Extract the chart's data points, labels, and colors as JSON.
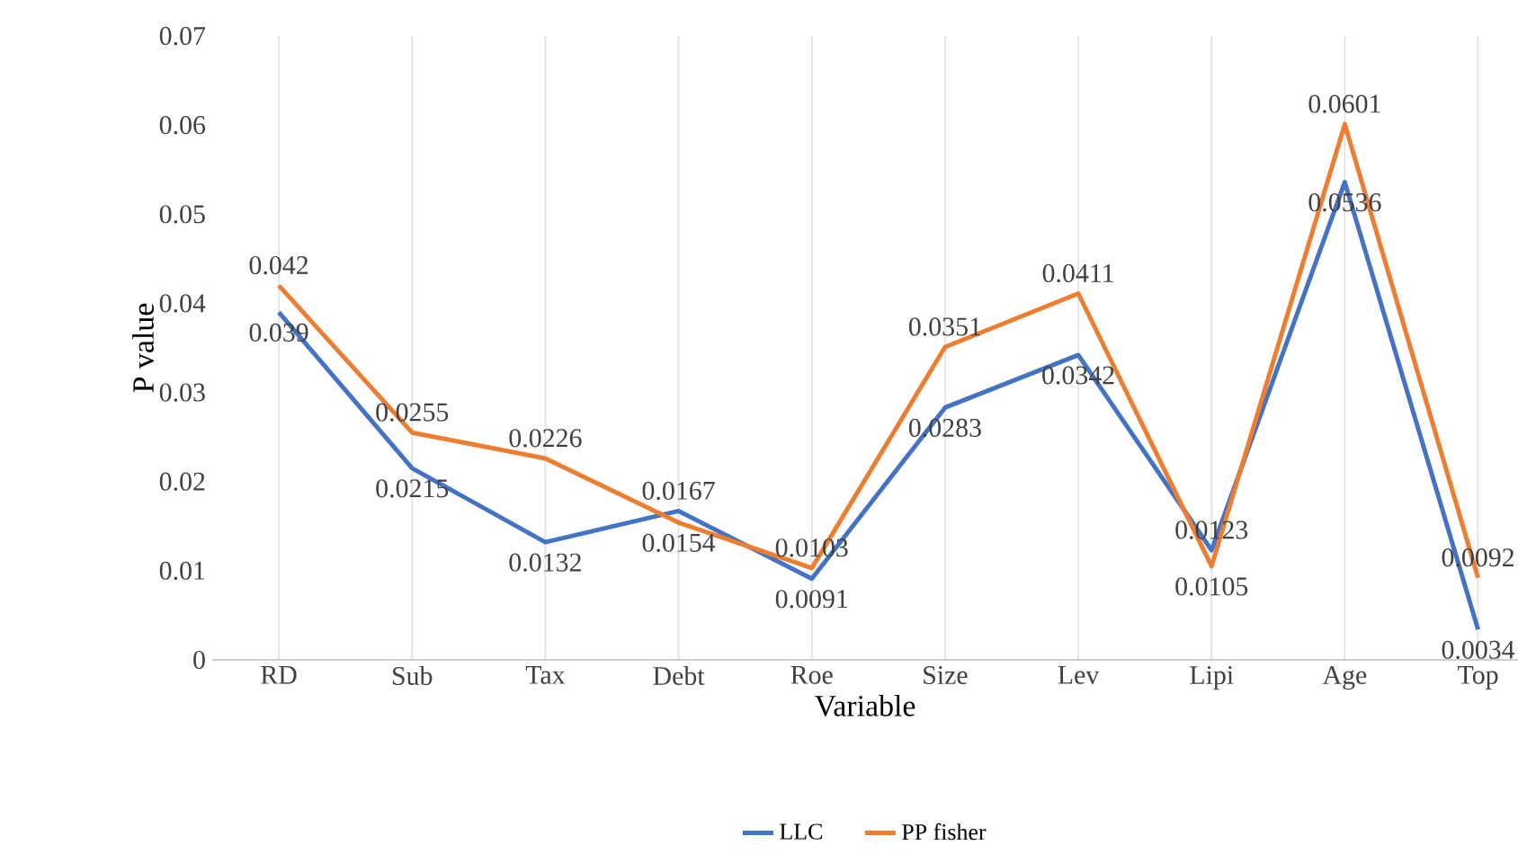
{
  "chart_data": {
    "type": "line",
    "xlabel": "Variable",
    "ylabel": "P value",
    "categories": [
      "RD",
      "Sub",
      "Tax",
      "Debt",
      "Roe",
      "Size",
      "Lev",
      "Lipi",
      "Age",
      "Top"
    ],
    "series": [
      {
        "name": "LLC",
        "color": "#4472c4",
        "values": [
          0.039,
          0.0215,
          0.0132,
          0.0167,
          0.0091,
          0.0283,
          0.0342,
          0.0123,
          0.0536,
          0.0034
        ]
      },
      {
        "name": "PP fisher",
        "color": "#ed7d31",
        "values": [
          0.042,
          0.0255,
          0.0226,
          0.0154,
          0.0103,
          0.0351,
          0.0411,
          0.0105,
          0.0601,
          0.0092
        ]
      }
    ],
    "ylim": [
      0,
      0.07
    ],
    "yticks": [
      0,
      0.01,
      0.02,
      0.03,
      0.04,
      0.05,
      0.06,
      0.07
    ],
    "grid": "x",
    "legend": "bottom",
    "data_labels": true
  }
}
